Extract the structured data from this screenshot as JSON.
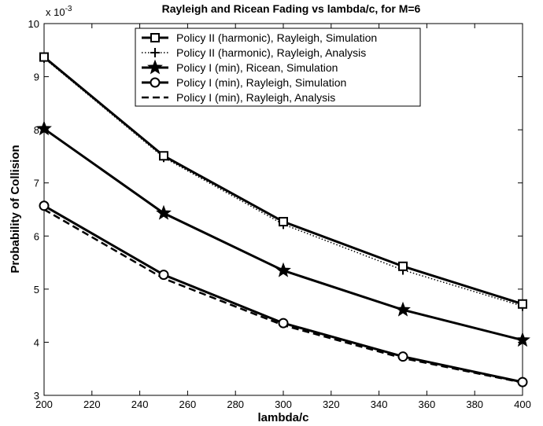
{
  "chart_data": {
    "type": "line",
    "title": "Rayleigh and Ricean Fading vs  lambda/c, for M=6",
    "xlabel": "lambda/c",
    "ylabel": "Probability of Collision",
    "y_multiplier": "x 10",
    "y_exponent": "-3",
    "xlim": [
      200,
      400
    ],
    "ylim": [
      3,
      10
    ],
    "xticks": [
      "200",
      "220",
      "240",
      "260",
      "280",
      "300",
      "320",
      "340",
      "360",
      "380",
      "400"
    ],
    "yticks": [
      "3",
      "4",
      "5",
      "6",
      "7",
      "8",
      "9",
      "10"
    ],
    "grid": false,
    "legend_position": "top-center",
    "x": [
      200,
      250,
      300,
      350,
      400
    ],
    "series": [
      {
        "name": "Policy II (harmonic), Rayleigh, Simulation",
        "marker": "square",
        "line": "solid",
        "values": [
          9.37,
          7.51,
          6.27,
          5.43,
          4.72
        ]
      },
      {
        "name": "Policy II (harmonic), Rayleigh, Analysis",
        "marker": "plus",
        "line": "dotted",
        "values": [
          9.35,
          7.48,
          6.22,
          5.36,
          4.68
        ]
      },
      {
        "name": "Policy I (min), Ricean, Simulation",
        "marker": "star",
        "line": "solid",
        "values": [
          8.02,
          6.43,
          5.35,
          4.61,
          4.04
        ]
      },
      {
        "name": "Policy I (min), Rayleigh, Simulation",
        "marker": "circle",
        "line": "solid",
        "values": [
          6.57,
          5.27,
          4.36,
          3.73,
          3.25
        ]
      },
      {
        "name": "Policy I (min), Rayleigh, Analysis",
        "marker": "none",
        "line": "dashed",
        "values": [
          6.5,
          5.2,
          4.32,
          3.7,
          3.24
        ]
      }
    ]
  }
}
